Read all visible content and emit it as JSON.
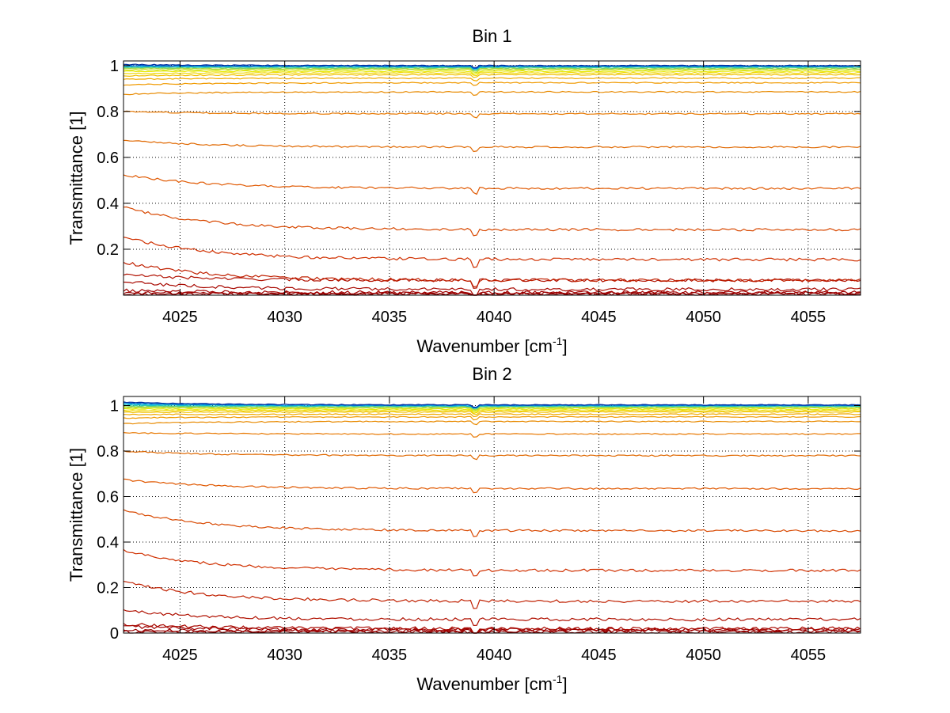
{
  "chart_data": [
    {
      "type": "line",
      "title": "Bin 1",
      "xlabel_main": "Wavenumber [cm",
      "xlabel_sup": "-1",
      "xlabel_end": "]",
      "ylabel": "Transmittance [1]",
      "xlim": [
        4022.3,
        4057.5
      ],
      "ylim": [
        0,
        1.02
      ],
      "xticks": [
        {
          "v": 4025,
          "label": "4025"
        },
        {
          "v": 4030,
          "label": "4030"
        },
        {
          "v": 4035,
          "label": "4035"
        },
        {
          "v": 4040,
          "label": "4040"
        },
        {
          "v": 4045,
          "label": "4045"
        },
        {
          "v": 4050,
          "label": "4050"
        },
        {
          "v": 4055,
          "label": "4055"
        }
      ],
      "yticks": [
        {
          "v": 0.2,
          "label": "0.2"
        },
        {
          "v": 0.4,
          "label": "0.4"
        },
        {
          "v": 0.6,
          "label": "0.6"
        },
        {
          "v": 0.8,
          "label": "0.8"
        },
        {
          "v": 1,
          "label": "1"
        }
      ],
      "grid": true,
      "series": [
        {
          "start": 0.005,
          "end": 0.005,
          "color": "#8a0000"
        },
        {
          "start": 0.01,
          "end": 0.008,
          "color": "#990000"
        },
        {
          "start": 0.02,
          "end": 0.012,
          "color": "#a00000"
        },
        {
          "start": 0.06,
          "end": 0.025,
          "color": "#a80800"
        },
        {
          "start": 0.09,
          "end": 0.065,
          "color": "#b01000"
        },
        {
          "start": 0.145,
          "end": 0.065,
          "color": "#c02000"
        },
        {
          "start": 0.255,
          "end": 0.155,
          "color": "#d03000"
        },
        {
          "start": 0.385,
          "end": 0.285,
          "color": "#d84800"
        },
        {
          "start": 0.525,
          "end": 0.465,
          "color": "#e05800"
        },
        {
          "start": 0.675,
          "end": 0.645,
          "color": "#e06800"
        },
        {
          "start": 0.8,
          "end": 0.79,
          "color": "#e87800"
        },
        {
          "start": 0.875,
          "end": 0.885,
          "color": "#e88a00"
        },
        {
          "start": 0.915,
          "end": 0.925,
          "color": "#f09a00"
        },
        {
          "start": 0.94,
          "end": 0.945,
          "color": "#f0aa00"
        },
        {
          "start": 0.955,
          "end": 0.96,
          "color": "#f0c000"
        },
        {
          "start": 0.965,
          "end": 0.968,
          "color": "#f0d800"
        },
        {
          "start": 0.975,
          "end": 0.975,
          "color": "#e8e800"
        },
        {
          "start": 0.982,
          "end": 0.982,
          "color": "#c8e020"
        },
        {
          "start": 0.988,
          "end": 0.986,
          "color": "#a0d840"
        },
        {
          "start": 0.992,
          "end": 0.99,
          "color": "#60d080"
        },
        {
          "start": 0.995,
          "end": 0.994,
          "color": "#20c8c0"
        },
        {
          "start": 0.998,
          "end": 0.996,
          "color": "#00a8e0"
        },
        {
          "start": 1.0,
          "end": 0.998,
          "color": "#0060d0"
        },
        {
          "start": 1.005,
          "end": 1.0,
          "color": "#0030a0"
        }
      ]
    },
    {
      "type": "line",
      "title": "Bin 2",
      "xlabel_main": "Wavenumber [cm",
      "xlabel_sup": "-1",
      "xlabel_end": "]",
      "ylabel": "Transmittance [1]",
      "xlim": [
        4022.3,
        4057.5
      ],
      "ylim": [
        0,
        1.04
      ],
      "xticks": [
        {
          "v": 4025,
          "label": "4025"
        },
        {
          "v": 4030,
          "label": "4030"
        },
        {
          "v": 4035,
          "label": "4035"
        },
        {
          "v": 4040,
          "label": "4040"
        },
        {
          "v": 4045,
          "label": "4045"
        },
        {
          "v": 4050,
          "label": "4050"
        },
        {
          "v": 4055,
          "label": "4055"
        }
      ],
      "yticks": [
        {
          "v": 0,
          "label": "0"
        },
        {
          "v": 0.2,
          "label": "0.2"
        },
        {
          "v": 0.4,
          "label": "0.4"
        },
        {
          "v": 0.6,
          "label": "0.6"
        },
        {
          "v": 0.8,
          "label": "0.8"
        },
        {
          "v": 1,
          "label": "1"
        }
      ],
      "grid": true,
      "series": [
        {
          "start": 0.005,
          "end": 0.005,
          "color": "#8a0000"
        },
        {
          "start": 0.012,
          "end": 0.01,
          "color": "#990000"
        },
        {
          "start": 0.03,
          "end": 0.015,
          "color": "#a00000"
        },
        {
          "start": 0.04,
          "end": 0.02,
          "color": "#a80800"
        },
        {
          "start": 0.1,
          "end": 0.06,
          "color": "#b01000"
        },
        {
          "start": 0.225,
          "end": 0.14,
          "color": "#c02000"
        },
        {
          "start": 0.365,
          "end": 0.275,
          "color": "#d03000"
        },
        {
          "start": 0.54,
          "end": 0.45,
          "color": "#d84800"
        },
        {
          "start": 0.675,
          "end": 0.635,
          "color": "#e05800"
        },
        {
          "start": 0.8,
          "end": 0.78,
          "color": "#e06800"
        },
        {
          "start": 0.88,
          "end": 0.875,
          "color": "#e87800"
        },
        {
          "start": 0.92,
          "end": 0.93,
          "color": "#e88a00"
        },
        {
          "start": 0.945,
          "end": 0.95,
          "color": "#f09a00"
        },
        {
          "start": 0.96,
          "end": 0.962,
          "color": "#f0aa00"
        },
        {
          "start": 0.97,
          "end": 0.972,
          "color": "#f0c000"
        },
        {
          "start": 0.978,
          "end": 0.978,
          "color": "#f0d800"
        },
        {
          "start": 0.985,
          "end": 0.984,
          "color": "#e8e800"
        },
        {
          "start": 0.99,
          "end": 0.989,
          "color": "#c8e020"
        },
        {
          "start": 0.995,
          "end": 0.993,
          "color": "#a0d840"
        },
        {
          "start": 0.999,
          "end": 0.996,
          "color": "#60d080"
        },
        {
          "start": 1.003,
          "end": 0.998,
          "color": "#20c8c0"
        },
        {
          "start": 1.008,
          "end": 1.0,
          "color": "#00a8e0"
        },
        {
          "start": 1.012,
          "end": 1.002,
          "color": "#0060d0"
        },
        {
          "start": 1.015,
          "end": 1.003,
          "color": "#0030a0"
        }
      ]
    }
  ]
}
